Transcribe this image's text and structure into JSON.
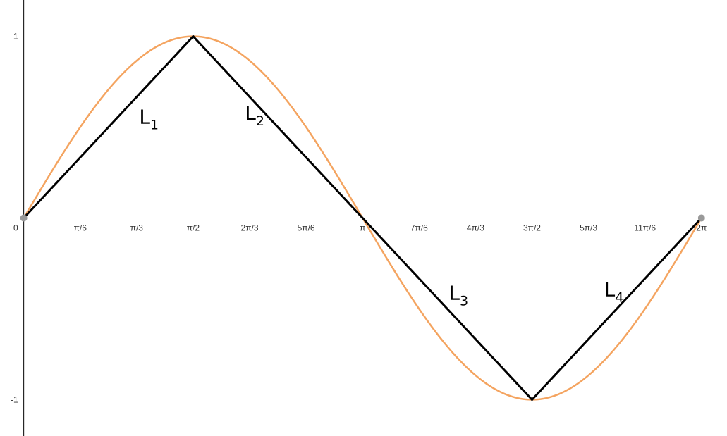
{
  "colors": {
    "curve": "#f4a460",
    "segments": "#000000",
    "axes": "#000000",
    "endpoints": "#999999"
  },
  "chart_data": {
    "type": "line",
    "x_ticks": [
      {
        "value": 0.5236,
        "label": "π/6"
      },
      {
        "value": 1.0472,
        "label": "π/3"
      },
      {
        "value": 1.5708,
        "label": "π/2"
      },
      {
        "value": 2.0944,
        "label": "2π/3"
      },
      {
        "value": 2.618,
        "label": "5π/6"
      },
      {
        "value": 3.1416,
        "label": "π"
      },
      {
        "value": 3.6652,
        "label": "7π/6"
      },
      {
        "value": 4.1888,
        "label": "4π/3"
      },
      {
        "value": 4.7124,
        "label": "3π/2"
      },
      {
        "value": 5.236,
        "label": "5π/3"
      },
      {
        "value": 5.7596,
        "label": "11π/6"
      },
      {
        "value": 6.2832,
        "label": "2π"
      }
    ],
    "y_ticks": [
      {
        "value": 1,
        "label": "1"
      },
      {
        "value": -1,
        "label": "-1"
      }
    ],
    "origin_label": "0",
    "xlim": [
      -0.22,
      6.52
    ],
    "ylim": [
      -1.2,
      1.2
    ],
    "curve": {
      "function": "sin(x)",
      "domain": [
        0,
        6.2832
      ]
    },
    "polyline": [
      [
        0,
        0
      ],
      [
        1.5708,
        1
      ],
      [
        3.1416,
        0
      ],
      [
        4.7124,
        -1
      ],
      [
        6.2832,
        0
      ]
    ],
    "segment_labels": [
      {
        "main": "L",
        "sub": "1",
        "x": 1.07,
        "y": 0.52
      },
      {
        "main": "L",
        "sub": "2",
        "x": 2.05,
        "y": 0.54
      },
      {
        "main": "L",
        "sub": "3",
        "x": 3.94,
        "y": -0.45
      },
      {
        "main": "L",
        "sub": "4",
        "x": 5.38,
        "y": -0.43
      }
    ],
    "endpoints": [
      [
        0,
        0
      ],
      [
        6.2832,
        0
      ]
    ],
    "grid": false
  }
}
